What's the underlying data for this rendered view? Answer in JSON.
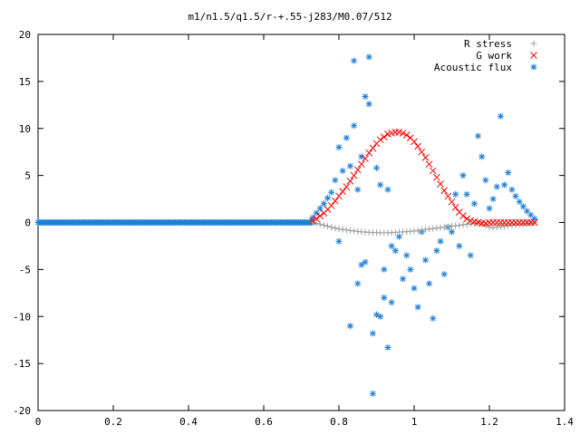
{
  "chart_data": {
    "type": "scatter",
    "title": "m1/n1.5/q1.5/r-+.55-j283/M0.07/512",
    "xlabel": "",
    "ylabel": "",
    "xlim": [
      0,
      1.4
    ],
    "ylim": [
      -20,
      20
    ],
    "xticks": [
      0,
      0.2,
      0.4,
      0.6,
      0.8,
      1,
      1.2,
      1.4
    ],
    "yticks": [
      -20,
      -15,
      -10,
      -5,
      0,
      5,
      10,
      15,
      20
    ],
    "grid": false,
    "legend_position": "top-right",
    "series": [
      {
        "name": "R stress",
        "marker": "+",
        "color": "#a0a0a0",
        "x": [
          0.73,
          0.74,
          0.75,
          0.76,
          0.77,
          0.78,
          0.79,
          0.8,
          0.81,
          0.82,
          0.83,
          0.84,
          0.85,
          0.86,
          0.87,
          0.88,
          0.89,
          0.9,
          0.91,
          0.92,
          0.93,
          0.94,
          0.95,
          0.96,
          0.97,
          0.98,
          0.99,
          1.0,
          1.01,
          1.02,
          1.03,
          1.04,
          1.05,
          1.06,
          1.07,
          1.08,
          1.09,
          1.1,
          1.11,
          1.12,
          1.13,
          1.14,
          1.15,
          1.16,
          1.17,
          1.18,
          1.19,
          1.2,
          1.21,
          1.22,
          1.23,
          1.24,
          1.25,
          1.26,
          1.27,
          1.28,
          1.29,
          1.3,
          1.31,
          1.32
        ],
        "y": [
          0.0,
          -0.1,
          -0.2,
          -0.3,
          -0.4,
          -0.5,
          -0.6,
          -0.7,
          -0.75,
          -0.8,
          -0.85,
          -0.9,
          -0.95,
          -1.0,
          -1.02,
          -1.05,
          -1.07,
          -1.08,
          -1.1,
          -1.1,
          -1.1,
          -1.08,
          -1.05,
          -1.02,
          -1.0,
          -0.98,
          -0.95,
          -0.9,
          -0.85,
          -0.8,
          -0.75,
          -0.7,
          -0.65,
          -0.6,
          -0.55,
          -0.5,
          -0.45,
          -0.4,
          -0.35,
          -0.3,
          -0.25,
          -0.2,
          -0.15,
          -0.1,
          -0.05,
          -0.02,
          -0.3,
          -0.5,
          -0.55,
          -0.5,
          -0.45,
          -0.4,
          -0.35,
          -0.3,
          -0.25,
          -0.2,
          -0.15,
          -0.1,
          -0.05,
          0.0
        ]
      },
      {
        "name": "G work",
        "marker": "x",
        "color": "#ff0000",
        "x": [
          0.73,
          0.74,
          0.75,
          0.76,
          0.77,
          0.78,
          0.79,
          0.8,
          0.81,
          0.82,
          0.83,
          0.84,
          0.85,
          0.86,
          0.87,
          0.88,
          0.89,
          0.9,
          0.91,
          0.92,
          0.93,
          0.94,
          0.95,
          0.96,
          0.97,
          0.98,
          0.99,
          1.0,
          1.01,
          1.02,
          1.03,
          1.04,
          1.05,
          1.06,
          1.07,
          1.08,
          1.09,
          1.1,
          1.11,
          1.12,
          1.13,
          1.14,
          1.15,
          1.16,
          1.17,
          1.18,
          1.19,
          1.2,
          1.21,
          1.22,
          1.23,
          1.24,
          1.25,
          1.26,
          1.27,
          1.28,
          1.29,
          1.3,
          1.31,
          1.32
        ],
        "y": [
          0.2,
          0.4,
          0.7,
          1.0,
          1.4,
          1.8,
          2.3,
          2.8,
          3.3,
          3.8,
          4.4,
          5.0,
          5.6,
          6.2,
          6.8,
          7.4,
          7.9,
          8.4,
          8.8,
          9.1,
          9.4,
          9.5,
          9.6,
          9.6,
          9.5,
          9.3,
          9.0,
          8.6,
          8.1,
          7.5,
          6.9,
          6.2,
          5.5,
          4.8,
          4.1,
          3.4,
          2.8,
          2.2,
          1.6,
          1.1,
          0.7,
          0.4,
          0.2,
          0.1,
          0.0,
          -0.1,
          -0.1,
          0.0,
          0.0,
          0.0,
          0.0,
          0.0,
          0.0,
          0.0,
          0.0,
          0.0,
          0.0,
          0.0,
          0.0,
          0.0
        ]
      },
      {
        "name": "Acoustic flux",
        "marker": "*",
        "color": "#1e7fd8",
        "baseline_x_range": [
          0,
          0.73
        ],
        "baseline_y": 0,
        "x": [
          0.73,
          0.74,
          0.75,
          0.76,
          0.77,
          0.78,
          0.79,
          0.8,
          0.8,
          0.81,
          0.82,
          0.83,
          0.83,
          0.84,
          0.84,
          0.85,
          0.85,
          0.86,
          0.86,
          0.87,
          0.87,
          0.88,
          0.88,
          0.89,
          0.89,
          0.9,
          0.9,
          0.91,
          0.91,
          0.92,
          0.92,
          0.93,
          0.93,
          0.94,
          0.94,
          0.95,
          0.96,
          0.97,
          0.98,
          0.99,
          1.0,
          1.01,
          1.02,
          1.03,
          1.04,
          1.05,
          1.06,
          1.07,
          1.08,
          1.09,
          1.1,
          1.11,
          1.12,
          1.13,
          1.14,
          1.15,
          1.16,
          1.17,
          1.18,
          1.19,
          1.2,
          1.21,
          1.22,
          1.23,
          1.24,
          1.25,
          1.26,
          1.27,
          1.28,
          1.29,
          1.3,
          1.31,
          1.32
        ],
        "y": [
          0.5,
          1.0,
          1.5,
          2.0,
          2.6,
          3.2,
          4.5,
          8.0,
          -2.0,
          5.5,
          9.0,
          6.0,
          -11.0,
          10.3,
          17.2,
          3.5,
          -6.5,
          7.0,
          -4.5,
          13.4,
          -4.2,
          17.6,
          12.6,
          -18.2,
          -11.8,
          5.8,
          -9.8,
          4.0,
          -10.0,
          -8.0,
          -5.0,
          3.5,
          -13.3,
          -2.5,
          -8.5,
          -3.0,
          -1.5,
          -6.0,
          -3.5,
          -5.0,
          -7.0,
          -9.0,
          -1.0,
          -4.0,
          -6.5,
          -10.2,
          -3.0,
          -2.0,
          -5.5,
          -0.5,
          -1.0,
          3.0,
          -2.5,
          5.0,
          3.0,
          -3.5,
          2.0,
          9.2,
          7.0,
          4.5,
          1.5,
          2.5,
          3.8,
          11.3,
          4.0,
          5.3,
          3.5,
          2.8,
          2.2,
          1.7,
          1.2,
          0.8,
          0.4
        ]
      }
    ]
  }
}
